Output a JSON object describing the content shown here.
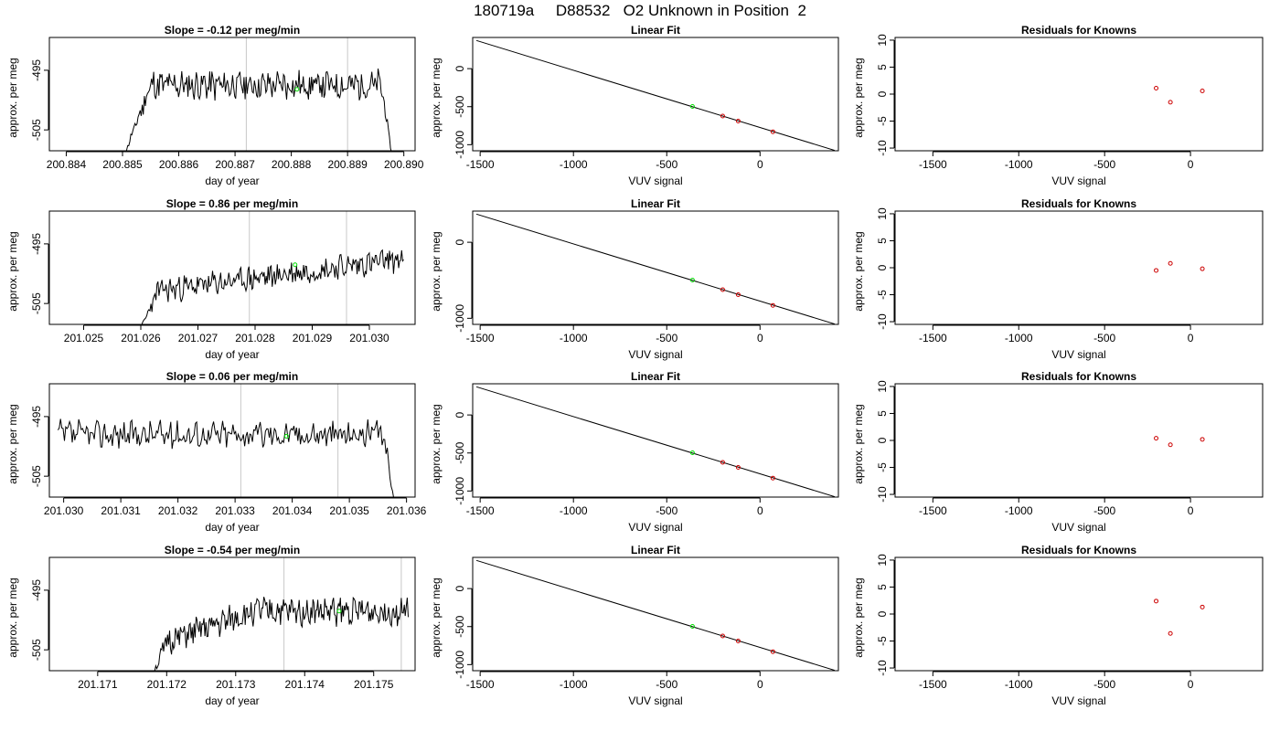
{
  "page_title": "180719a     D88532   O2 Unknown in Position  2",
  "colors": {
    "axis": "#000000",
    "trace": "#000000",
    "marker_vline": "#c8c8c8",
    "unknown_point": "#00dd00",
    "known_point": "#cc0000"
  },
  "chart_data": [
    {
      "type": "line",
      "panel": "trace",
      "row": 1,
      "title": "Slope =  -0.12  per meg/min",
      "xlabel": "day of year",
      "ylabel": "approx. per meg",
      "xlim": [
        200.8837,
        200.8902
      ],
      "ylim": [
        -508.5,
        -489.5
      ],
      "x_ticks": [
        "200.884",
        "200.885",
        "200.886",
        "200.887",
        "200.888",
        "200.889",
        "200.890"
      ],
      "x_tick_values": [
        200.884,
        200.885,
        200.886,
        200.887,
        200.888,
        200.889,
        200.89
      ],
      "y_ticks": [
        "-505",
        "-495"
      ],
      "y_tick_values": [
        -505,
        -495
      ],
      "vlines": [
        200.8872,
        200.889
      ],
      "unknown_point": {
        "x": 200.8881,
        "y": -498.2
      },
      "trace": {
        "x_start": 200.885,
        "x_end": 200.8898,
        "seed": 11,
        "plateau": -497.5,
        "noise": 2.2,
        "rise": [
          200.885,
          200.8855,
          -510
        ],
        "fall": [
          200.8896,
          200.8898,
          -510
        ]
      }
    },
    {
      "type": "line",
      "panel": "fit",
      "row": 1,
      "title": "Linear Fit",
      "xlabel": "VUV signal",
      "ylabel": "approx. per meg",
      "xlim": [
        -1540,
        420
      ],
      "ylim": [
        -1080,
        410
      ],
      "x_ticks": [
        "-1500",
        "-1000",
        "-500",
        "0"
      ],
      "x_tick_values": [
        -1500,
        -1000,
        -500,
        0
      ],
      "y_ticks": [
        "-1000",
        "-500",
        "0"
      ],
      "y_tick_values": [
        -1000,
        -500,
        0
      ],
      "line": {
        "x": [
          -1520,
          400
        ],
        "y": [
          370,
          -1075
        ]
      },
      "unknown_point": {
        "x": -362,
        "y": -497
      },
      "known_points": {
        "x": [
          -200,
          -117,
          69
        ],
        "y": [
          -623,
          -689,
          -830
        ]
      }
    },
    {
      "type": "scatter",
      "panel": "residuals",
      "row": 1,
      "title": "Residuals for Knowns",
      "xlabel": "VUV signal",
      "ylabel": "approx. per meg",
      "xlim": [
        -1720,
        420
      ],
      "ylim": [
        -10.5,
        10.5
      ],
      "x_ticks": [
        "-1500",
        "-1000",
        "-500",
        "0"
      ],
      "x_tick_values": [
        -1500,
        -1000,
        -500,
        0
      ],
      "y_ticks": [
        "-10",
        "-5",
        "0",
        "5",
        "10"
      ],
      "y_tick_values": [
        -10,
        -5,
        0,
        5,
        10
      ],
      "points": {
        "x": [
          -200,
          -117,
          69
        ],
        "y": [
          1.1,
          -1.5,
          0.6
        ]
      }
    },
    {
      "type": "line",
      "panel": "trace",
      "row": 2,
      "title": "Slope =  0.86  per meg/min",
      "xlabel": "day of year",
      "ylabel": "approx. per meg",
      "xlim": [
        201.0244,
        201.0308
      ],
      "ylim": [
        -508.5,
        -489.5
      ],
      "x_ticks": [
        "201.025",
        "201.026",
        "201.027",
        "201.028",
        "201.029",
        "201.030"
      ],
      "x_tick_values": [
        201.025,
        201.026,
        201.027,
        201.028,
        201.029,
        201.03
      ],
      "y_ticks": [
        "-505",
        "-495"
      ],
      "y_tick_values": [
        -505,
        -495
      ],
      "vlines": [
        201.0279,
        201.0296
      ],
      "unknown_point": {
        "x": 201.0287,
        "y": -498.5
      },
      "trace": {
        "x_start": 201.026,
        "x_end": 201.0306,
        "seed": 23,
        "plateau": -499.5,
        "noise": 1.8,
        "ramp": [
          201.0262,
          201.0306,
          -503.0,
          -497.5
        ],
        "rise": [
          201.026,
          201.0263,
          -509
        ],
        "fall": null
      }
    },
    {
      "type": "line",
      "panel": "fit",
      "row": 2,
      "title": "Linear Fit",
      "xlabel": "VUV signal",
      "ylabel": "approx. per meg",
      "xlim": [
        -1540,
        420
      ],
      "ylim": [
        -1080,
        410
      ],
      "x_ticks": [
        "-1500",
        "-1000",
        "-500",
        "0"
      ],
      "x_tick_values": [
        -1500,
        -1000,
        -500,
        0
      ],
      "y_ticks": [
        "-1000",
        "0"
      ],
      "y_tick_values": [
        -1000,
        0
      ],
      "line": {
        "x": [
          -1520,
          400
        ],
        "y": [
          370,
          -1075
        ]
      },
      "unknown_point": {
        "x": -362,
        "y": -497
      },
      "known_points": {
        "x": [
          -200,
          -117,
          69
        ],
        "y": [
          -623,
          -689,
          -830
        ]
      }
    },
    {
      "type": "scatter",
      "panel": "residuals",
      "row": 2,
      "title": "Residuals for Knowns",
      "xlabel": "VUV signal",
      "ylabel": "approx. per meg",
      "xlim": [
        -1720,
        420
      ],
      "ylim": [
        -10.5,
        10.5
      ],
      "x_ticks": [
        "-1500",
        "-1000",
        "-500",
        "0"
      ],
      "x_tick_values": [
        -1500,
        -1000,
        -500,
        0
      ],
      "y_ticks": [
        "-10",
        "-5",
        "0",
        "5",
        "10"
      ],
      "y_tick_values": [
        -10,
        -5,
        0,
        5,
        10
      ],
      "points": {
        "x": [
          -200,
          -117,
          69
        ],
        "y": [
          -0.5,
          0.8,
          -0.2
        ]
      }
    },
    {
      "type": "line",
      "panel": "trace",
      "row": 3,
      "title": "Slope =  0.06  per meg/min",
      "xlabel": "day of year",
      "ylabel": "approx. per meg",
      "xlim": [
        201.02975,
        201.03615
      ],
      "ylim": [
        -508.5,
        -489.5
      ],
      "x_ticks": [
        "201.030",
        "201.031",
        "201.032",
        "201.033",
        "201.034",
        "201.035",
        "201.036"
      ],
      "x_tick_values": [
        201.03,
        201.031,
        201.032,
        201.033,
        201.034,
        201.035,
        201.036
      ],
      "y_ticks": [
        "-505",
        "-495"
      ],
      "y_tick_values": [
        -505,
        -495
      ],
      "vlines": [
        201.0331,
        201.0348
      ],
      "unknown_point": {
        "x": 201.0339,
        "y": -498.3
      },
      "trace": {
        "x_start": 201.0299,
        "x_end": 201.0358,
        "seed": 37,
        "plateau": -498.0,
        "noise": 2.0,
        "rise": null,
        "fall": [
          201.0356,
          201.0358,
          -510
        ]
      }
    },
    {
      "type": "line",
      "panel": "fit",
      "row": 3,
      "title": "Linear Fit",
      "xlabel": "VUV signal",
      "ylabel": "approx. per meg",
      "xlim": [
        -1540,
        420
      ],
      "ylim": [
        -1080,
        410
      ],
      "x_ticks": [
        "-1500",
        "-1000",
        "-500",
        "0"
      ],
      "x_tick_values": [
        -1500,
        -1000,
        -500,
        0
      ],
      "y_ticks": [
        "-1000",
        "-500",
        "0"
      ],
      "y_tick_values": [
        -1000,
        -500,
        0
      ],
      "line": {
        "x": [
          -1520,
          400
        ],
        "y": [
          370,
          -1075
        ]
      },
      "unknown_point": {
        "x": -362,
        "y": -497
      },
      "known_points": {
        "x": [
          -200,
          -117,
          69
        ],
        "y": [
          -623,
          -689,
          -830
        ]
      }
    },
    {
      "type": "scatter",
      "panel": "residuals",
      "row": 3,
      "title": "Residuals for Knowns",
      "xlabel": "VUV signal",
      "ylabel": "approx. per meg",
      "xlim": [
        -1720,
        420
      ],
      "ylim": [
        -10.5,
        10.5
      ],
      "x_ticks": [
        "-1500",
        "-1000",
        "-500",
        "0"
      ],
      "x_tick_values": [
        -1500,
        -1000,
        -500,
        0
      ],
      "y_ticks": [
        "-10",
        "-5",
        "0",
        "5",
        "10"
      ],
      "y_tick_values": [
        -10,
        -5,
        0,
        5,
        10
      ],
      "points": {
        "x": [
          -200,
          -117,
          69
        ],
        "y": [
          0.4,
          -0.8,
          0.2
        ]
      }
    },
    {
      "type": "line",
      "panel": "trace",
      "row": 4,
      "title": "Slope =  -0.54  per meg/min",
      "xlabel": "day of year",
      "ylabel": "approx. per meg",
      "xlim": [
        201.1703,
        201.1756
      ],
      "ylim": [
        -508.5,
        -489.5
      ],
      "x_ticks": [
        "201.171",
        "201.172",
        "201.173",
        "201.174",
        "201.175"
      ],
      "x_tick_values": [
        201.171,
        201.172,
        201.173,
        201.174,
        201.175
      ],
      "y_ticks": [
        "-505",
        "-495"
      ],
      "y_tick_values": [
        -505,
        -495
      ],
      "vlines": [
        201.1737,
        201.1754
      ],
      "unknown_point": {
        "x": 201.1745,
        "y": -498.5
      },
      "trace": {
        "x_start": 201.1718,
        "x_end": 201.1755,
        "seed": 51,
        "plateau": -498.5,
        "noise": 2.0,
        "ramp": [
          201.1719,
          201.1733,
          -504.0,
          -498.5
        ],
        "rise": [
          201.1718,
          201.172,
          -509
        ],
        "fall": null
      }
    },
    {
      "type": "line",
      "panel": "fit",
      "row": 4,
      "title": "Linear Fit",
      "xlabel": "VUV signal",
      "ylabel": "approx. per meg",
      "xlim": [
        -1540,
        420
      ],
      "ylim": [
        -1080,
        410
      ],
      "x_ticks": [
        "-1500",
        "-1000",
        "-500",
        "0"
      ],
      "x_tick_values": [
        -1500,
        -1000,
        -500,
        0
      ],
      "y_ticks": [
        "-1000",
        "-500",
        "0"
      ],
      "y_tick_values": [
        -1000,
        -500,
        0
      ],
      "line": {
        "x": [
          -1520,
          400
        ],
        "y": [
          370,
          -1075
        ]
      },
      "unknown_point": {
        "x": -362,
        "y": -497
      },
      "known_points": {
        "x": [
          -200,
          -117,
          69
        ],
        "y": [
          -623,
          -689,
          -830
        ]
      }
    },
    {
      "type": "scatter",
      "panel": "residuals",
      "row": 4,
      "title": "Residuals for Knowns",
      "xlabel": "VUV signal",
      "ylabel": "approx. per meg",
      "xlim": [
        -1720,
        420
      ],
      "ylim": [
        -10.5,
        10.5
      ],
      "x_ticks": [
        "-1500",
        "-1000",
        "-500",
        "0"
      ],
      "x_tick_values": [
        -1500,
        -1000,
        -500,
        0
      ],
      "y_ticks": [
        "-10",
        "-5",
        "0",
        "5",
        "10"
      ],
      "y_tick_values": [
        -10,
        -5,
        0,
        5,
        10
      ],
      "points": {
        "x": [
          -200,
          -117,
          69
        ],
        "y": [
          2.4,
          -3.6,
          1.3
        ]
      }
    }
  ]
}
